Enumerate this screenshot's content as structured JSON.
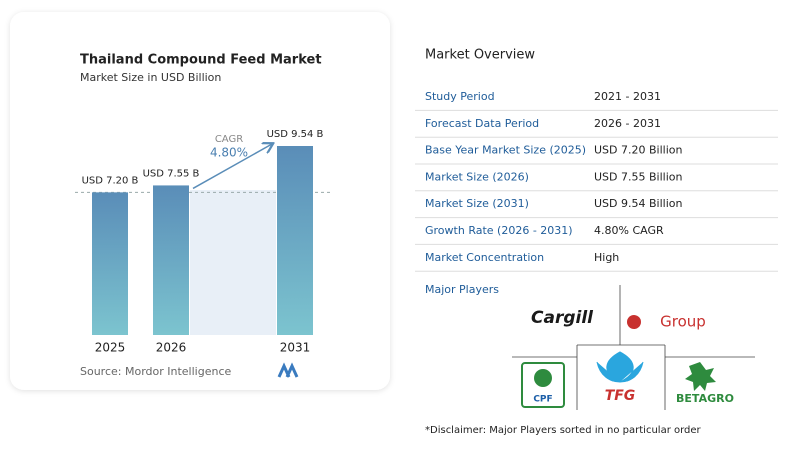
{
  "chart_data": {
    "type": "bar",
    "title": "Thailand Compound Feed Market",
    "subtitle": "Market Size in USD Billion",
    "categories": [
      "2025",
      "2026",
      "2031"
    ],
    "values": [
      7.2,
      7.55,
      9.54
    ],
    "value_labels": [
      "USD 7.20 B",
      "USD 7.55 B",
      "USD 9.54 B"
    ],
    "annotations": [
      "CAGR",
      "4.80%"
    ],
    "source": "Source: Mordor Intelligence",
    "colors": [
      "#5a8db8",
      "#7cc4cf"
    ]
  },
  "overview": {
    "title": "Market Overview",
    "rows": [
      [
        "Study Period",
        "2021 - 2031"
      ],
      [
        "Forecast Data Period",
        "2026 - 2031"
      ],
      [
        "Base Year Market Size (2025)",
        "USD 7.20 Billion"
      ],
      [
        "Market Size (2026)",
        "USD 7.55 Billion"
      ],
      [
        "Market Size (2031)",
        "USD 9.54 Billion"
      ],
      [
        "Growth Rate (2026 - 2031)",
        "4.80% CAGR"
      ],
      [
        "Market Concentration",
        "High"
      ]
    ]
  },
  "players": {
    "title": "Major Players",
    "logos": [
      "Cargill",
      "Group",
      "CPF",
      "TFG",
      "BETAGRO"
    ],
    "disclaimer": "*Disclaimer: Major Players sorted in no particular order"
  }
}
